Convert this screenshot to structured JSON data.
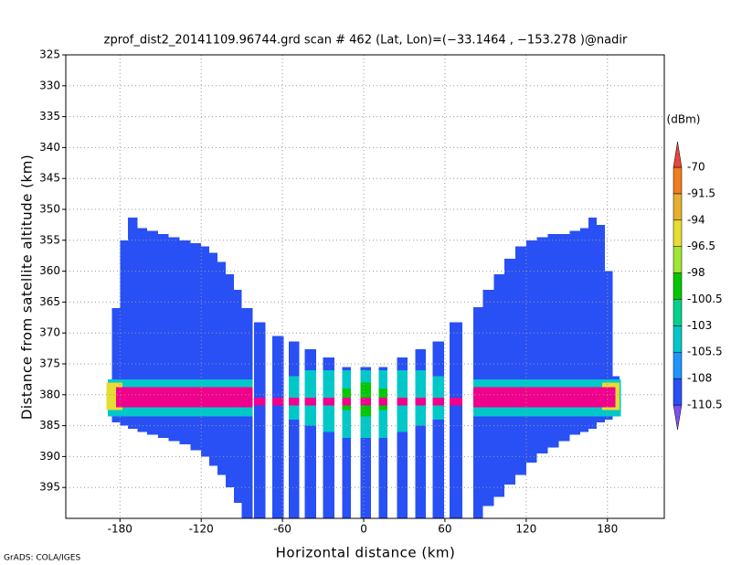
{
  "chart_data": {
    "type": "swath",
    "title": "zprof_dist2_20141109.96744.grd  scan # 462  (Lat, Lon)=(−33.1464 , −153.278 )@nadir",
    "x_label": "Horizontal distance (km)",
    "y_label": "Distance from satellite altitude (km)",
    "colorbar_unit": "(dBm)",
    "footer": "GrADS: COLA/IGES",
    "xlim": [
      -220,
      222
    ],
    "ylim": [
      400,
      325
    ],
    "xticks": [
      -180,
      -120,
      -60,
      0,
      60,
      120,
      180
    ],
    "yticks": [
      325,
      330,
      335,
      340,
      345,
      350,
      355,
      360,
      365,
      370,
      375,
      380,
      385,
      390,
      395
    ],
    "grid": true,
    "colorbar": {
      "levels": [
        -110.5,
        -108,
        -105.5,
        -103,
        -100.5,
        -98,
        -96.5,
        -94,
        -91.5,
        -70
      ],
      "colors": [
        "#7d50f0",
        "#2850f5",
        "#1e96ff",
        "#00c8c8",
        "#00d28c",
        "#00c800",
        "#a0e632",
        "#e6dc32",
        "#e6af2d",
        "#f07d1e",
        "#f0008c",
        "#e6463c"
      ]
    },
    "layers": [
      {
        "color": "#2850f5",
        "x0": [
          -186,
          -180,
          -174,
          -167,
          -160,
          -152,
          -144,
          -136,
          -128,
          -120,
          -114,
          -108,
          -102,
          -96,
          -90,
          -81,
          -67.5,
          -55.5,
          -43.5,
          -30,
          -16,
          -2.5,
          11,
          24.5,
          38,
          51,
          63.5,
          81,
          88,
          96,
          104,
          112,
          120,
          128,
          136,
          144,
          152,
          160,
          166,
          172,
          178,
          184
        ],
        "x1": [
          -180,
          -174,
          -167,
          -160,
          -152,
          -144,
          -136,
          -128,
          -120,
          -114,
          -108,
          -102,
          -96,
          -90,
          -82,
          -72.5,
          -59,
          -47.5,
          -35,
          -21.5,
          -9.5,
          5.5,
          17.5,
          32.5,
          46,
          59.5,
          73,
          88,
          96,
          104,
          112,
          120,
          128,
          136,
          144,
          152,
          160,
          166,
          172,
          178,
          184,
          189
        ],
        "top": [
          366,
          355,
          351.3,
          353,
          353.5,
          354,
          354.5,
          355,
          355.5,
          356,
          357,
          358.5,
          360.5,
          363,
          366,
          368.3,
          370.5,
          371.4,
          372.6,
          374,
          375.5,
          375.5,
          375.5,
          374,
          372.6,
          371.4,
          368.3,
          365.8,
          363,
          360.5,
          358,
          356,
          355,
          354.5,
          354,
          354,
          353.5,
          353,
          351.3,
          352.5,
          360,
          377
        ],
        "bottom": [
          384.5,
          385,
          385.5,
          386,
          386.5,
          387,
          387.5,
          388,
          389,
          390,
          391.5,
          393,
          395,
          397.5,
          400,
          400,
          400,
          400,
          400,
          400,
          400,
          400,
          400,
          400,
          400,
          400,
          400,
          400,
          398,
          396.5,
          394.5,
          393,
          391,
          389.5,
          388.5,
          387.5,
          386.5,
          386,
          385.5,
          384.5,
          384,
          383.5
        ]
      },
      {
        "color": "#00c8c8",
        "x0": [
          -189,
          -55.5,
          -43.5,
          -30,
          -16,
          -2.5,
          11,
          24.5,
          38,
          51,
          81
        ],
        "x1": [
          -82,
          -47.5,
          -35,
          -21.5,
          -9.5,
          5.5,
          17.5,
          32.5,
          46,
          59.5,
          190
        ],
        "top": [
          377.5,
          377,
          376,
          376,
          376,
          376,
          376,
          376,
          376,
          377,
          377.5
        ],
        "bottom": [
          383.5,
          384,
          385,
          386,
          387,
          387,
          387,
          386,
          385,
          384,
          383.5
        ]
      },
      {
        "color": "#e6dc32",
        "x0": [
          -190,
          176
        ],
        "x1": [
          -178,
          189
        ],
        "top": [
          378,
          378
        ],
        "bottom": [
          382.5,
          382.5
        ]
      },
      {
        "color": "#00c800",
        "x0": [
          -16,
          -2.5,
          11
        ],
        "x1": [
          -9.5,
          5.5,
          17.5
        ],
        "top": [
          379,
          378,
          379
        ],
        "bottom": [
          382.5,
          383.5,
          382.5
        ]
      },
      {
        "color": "#f0008c",
        "x0": [
          -183,
          -81,
          -67.5,
          -55.5,
          -43.5,
          -30,
          -16,
          -2.5,
          11,
          24.5,
          38,
          51,
          63.5,
          81
        ],
        "x1": [
          -82,
          -72.5,
          -59,
          -47.5,
          -35,
          -21.5,
          -9.5,
          5.5,
          17.5,
          32.5,
          46,
          59.5,
          73,
          186
        ],
        "top": [
          378.8,
          380.5,
          380.5,
          380.5,
          380.5,
          380.5,
          380.5,
          380.5,
          380.5,
          380.5,
          380.5,
          380.5,
          380.5,
          378.8
        ],
        "bottom": [
          382,
          381.7,
          381.7,
          381.7,
          381.7,
          381.7,
          381.7,
          381.7,
          381.7,
          381.7,
          381.7,
          381.7,
          381.7,
          382
        ]
      }
    ]
  }
}
